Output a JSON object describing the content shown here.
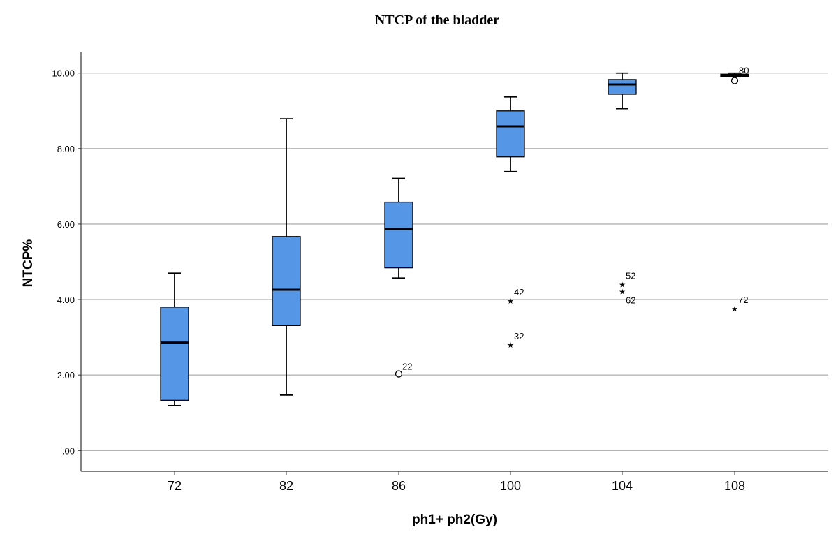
{
  "chart_data": {
    "type": "boxplot",
    "title": "NTCP of the bladder",
    "xlabel": "ph1+ ph2(Gy)",
    "ylabel": "NTCP%",
    "ylim": [
      -0.55,
      10.55
    ],
    "yticks": [
      0,
      2,
      4,
      6,
      8,
      10
    ],
    "ytick_labels": [
      ".00",
      "2.00",
      "4.00",
      "6.00",
      "8.00",
      "10.00"
    ],
    "grid": true,
    "box_color": "#5596e6",
    "categories": [
      "72",
      "82",
      "86",
      "100",
      "104",
      "108"
    ],
    "boxes": [
      {
        "category": "72",
        "min": 1.19,
        "q1": 1.33,
        "median": 2.86,
        "q3": 3.8,
        "max": 4.7,
        "outliers": []
      },
      {
        "category": "82",
        "min": 1.47,
        "q1": 3.31,
        "median": 4.26,
        "q3": 5.67,
        "max": 8.79,
        "outliers": []
      },
      {
        "category": "86",
        "min": 4.57,
        "q1": 4.84,
        "median": 5.87,
        "q3": 6.58,
        "max": 7.21,
        "outliers": [
          {
            "value": 2.03,
            "label": "22",
            "marker": "circle"
          }
        ]
      },
      {
        "category": "100",
        "min": 7.39,
        "q1": 7.78,
        "median": 8.59,
        "q3": 9.0,
        "max": 9.37,
        "outliers": [
          {
            "value": 4.0,
            "label": "42",
            "marker": "star"
          },
          {
            "value": 2.84,
            "label": "32",
            "marker": "star"
          }
        ]
      },
      {
        "category": "104",
        "min": 9.06,
        "q1": 9.44,
        "median": 9.7,
        "q3": 9.83,
        "max": 10.0,
        "outliers": [
          {
            "value": 4.44,
            "label": "52",
            "marker": "star"
          },
          {
            "value": 4.25,
            "label": "62",
            "marker": "star"
          }
        ]
      },
      {
        "category": "108",
        "min": 9.9,
        "q1": 9.9,
        "median": 9.94,
        "q3": 9.97,
        "max": 10.0,
        "outliers": [
          {
            "value": 9.8,
            "label": "",
            "marker": "circle"
          },
          {
            "value": 3.8,
            "label": "72",
            "marker": "star"
          }
        ]
      }
    ],
    "extra_labels": [
      {
        "category": "108",
        "value": 10.02,
        "label": "80"
      }
    ]
  }
}
